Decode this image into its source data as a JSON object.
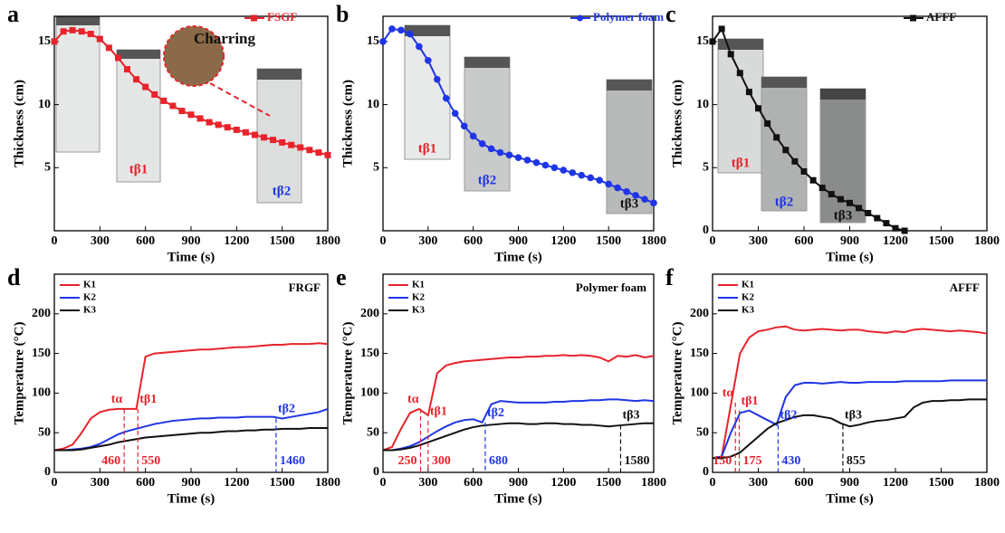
{
  "chart_data": [
    {
      "type": "line",
      "panel": "a",
      "xlabel": "Time (s)",
      "ylabel": "Thickness (cm)",
      "xlim": [
        0,
        1800
      ],
      "ylim": [
        0,
        17
      ],
      "xticks": [
        0,
        300,
        600,
        900,
        1200,
        1500,
        1800
      ],
      "yticks": [
        5,
        10,
        15
      ],
      "legend": "upper right",
      "marker": "square",
      "x": [
        0,
        60,
        120,
        180,
        240,
        300,
        360,
        420,
        480,
        540,
        600,
        660,
        720,
        780,
        840,
        900,
        960,
        1020,
        1080,
        1140,
        1200,
        1260,
        1320,
        1380,
        1440,
        1500,
        1560,
        1620,
        1680,
        1740,
        1800
      ],
      "series": [
        {
          "name": "FSGF",
          "color": "#e8232b",
          "values": [
            15.0,
            15.8,
            15.9,
            15.8,
            15.6,
            15.2,
            14.5,
            13.7,
            12.8,
            12.0,
            11.4,
            10.8,
            10.3,
            9.9,
            9.5,
            9.2,
            8.9,
            8.6,
            8.4,
            8.2,
            8.0,
            7.8,
            7.6,
            7.4,
            7.2,
            7.0,
            6.8,
            6.6,
            6.4,
            6.2,
            6.0
          ]
        }
      ],
      "photo_labels": [
        {
          "text": "tβ1",
          "color": "#e8232b"
        },
        {
          "text": "tβ2",
          "color": "#1f35e6"
        },
        {
          "text": "Charring",
          "color": "#111111"
        }
      ]
    },
    {
      "type": "line",
      "panel": "b",
      "xlabel": "Time (s)",
      "ylabel": "Thickness (cm)",
      "xlim": [
        0,
        1800
      ],
      "ylim": [
        0,
        17
      ],
      "xticks": [
        0,
        300,
        600,
        900,
        1200,
        1500,
        1800
      ],
      "yticks": [
        5,
        10,
        15
      ],
      "legend": "upper right",
      "marker": "circle",
      "x": [
        0,
        60,
        120,
        180,
        240,
        300,
        360,
        420,
        480,
        540,
        600,
        660,
        720,
        780,
        840,
        900,
        960,
        1020,
        1080,
        1140,
        1200,
        1260,
        1320,
        1380,
        1440,
        1500,
        1560,
        1620,
        1680,
        1740,
        1800
      ],
      "series": [
        {
          "name": "Polymer foam",
          "color": "#1f35e6",
          "values": [
            15.0,
            16.0,
            15.9,
            15.6,
            14.6,
            13.5,
            12.0,
            10.5,
            9.3,
            8.3,
            7.5,
            6.9,
            6.5,
            6.2,
            6.0,
            5.8,
            5.6,
            5.4,
            5.2,
            5.0,
            4.8,
            4.6,
            4.4,
            4.2,
            4.0,
            3.7,
            3.4,
            3.1,
            2.8,
            2.5,
            2.2
          ]
        }
      ],
      "photo_labels": [
        {
          "text": "tβ1",
          "color": "#e8232b"
        },
        {
          "text": "tβ2",
          "color": "#1f35e6"
        },
        {
          "text": "tβ3",
          "color": "#111111"
        }
      ]
    },
    {
      "type": "line",
      "panel": "c",
      "xlabel": "Time (s)",
      "ylabel": "Thickness (cm)",
      "xlim": [
        0,
        1800
      ],
      "ylim": [
        0,
        17
      ],
      "xticks": [
        0,
        300,
        600,
        900,
        1200,
        1500,
        1800
      ],
      "yticks": [
        0,
        5,
        10,
        15
      ],
      "legend": "upper right",
      "marker": "square",
      "x": [
        0,
        60,
        120,
        180,
        240,
        300,
        360,
        420,
        480,
        540,
        600,
        660,
        720,
        780,
        840,
        900,
        960,
        1020,
        1080,
        1140,
        1200,
        1260
      ],
      "series": [
        {
          "name": "AFFF",
          "color": "#111111",
          "values": [
            15.0,
            16.0,
            14.0,
            12.5,
            11.0,
            9.7,
            8.5,
            7.4,
            6.4,
            5.5,
            4.7,
            4.0,
            3.4,
            2.9,
            2.5,
            2.2,
            1.8,
            1.4,
            1.0,
            0.6,
            0.2,
            0
          ]
        }
      ],
      "photo_labels": [
        {
          "text": "tβ1",
          "color": "#e8232b"
        },
        {
          "text": "tβ2",
          "color": "#1f35e6"
        },
        {
          "text": "tβ3",
          "color": "#111111"
        }
      ]
    },
    {
      "type": "line",
      "panel": "d",
      "title": "FRGF",
      "xlabel": "Time (s)",
      "ylabel": "Temperature (°C)",
      "xlim": [
        0,
        1800
      ],
      "ylim": [
        0,
        250
      ],
      "xticks": [
        0,
        300,
        600,
        900,
        1200,
        1500,
        1800
      ],
      "yticks": [
        0,
        50,
        100,
        150,
        200
      ],
      "legend": "upper left",
      "x": [
        0,
        60,
        120,
        180,
        240,
        300,
        360,
        420,
        480,
        540,
        600,
        660,
        720,
        780,
        840,
        900,
        960,
        1020,
        1080,
        1140,
        1200,
        1260,
        1320,
        1380,
        1440,
        1500,
        1560,
        1620,
        1680,
        1740,
        1800
      ],
      "series": [
        {
          "name": "K1",
          "color": "#e8232b",
          "values": [
            28,
            30,
            35,
            50,
            68,
            76,
            79,
            80,
            80,
            80,
            146,
            150,
            151,
            152,
            153,
            154,
            155,
            155,
            156,
            157,
            158,
            158,
            159,
            160,
            161,
            161,
            162,
            162,
            162,
            163,
            162
          ]
        },
        {
          "name": "K2",
          "color": "#1f35e6",
          "values": [
            28,
            28,
            29,
            30,
            32,
            36,
            42,
            48,
            52,
            55,
            58,
            61,
            63,
            65,
            66,
            67,
            68,
            68,
            69,
            69,
            69,
            70,
            70,
            70,
            70,
            68,
            70,
            72,
            74,
            76,
            80
          ]
        },
        {
          "name": "K3",
          "color": "#111111",
          "values": [
            28,
            28,
            28,
            29,
            31,
            33,
            35,
            38,
            40,
            42,
            44,
            45,
            46,
            47,
            48,
            49,
            50,
            50,
            51,
            52,
            52,
            53,
            53,
            54,
            54,
            55,
            55,
            55,
            56,
            56,
            56
          ]
        }
      ],
      "annotations": [
        {
          "label": "tα",
          "x": 460,
          "y": 80,
          "color": "#e8232b"
        },
        {
          "label": "tβ1",
          "x": 550,
          "y": 80,
          "color": "#e8232b"
        },
        {
          "label": "tβ2",
          "x": 1460,
          "y": 68,
          "color": "#1f35e6"
        }
      ]
    },
    {
      "type": "line",
      "panel": "e",
      "title": "Polymer foam",
      "xlabel": "Time (s)",
      "ylabel": "Temperature (°C)",
      "xlim": [
        0,
        1800
      ],
      "ylim": [
        0,
        250
      ],
      "xticks": [
        0,
        300,
        600,
        900,
        1200,
        1500,
        1800
      ],
      "yticks": [
        0,
        50,
        100,
        150,
        200
      ],
      "legend": "upper left",
      "x": [
        0,
        60,
        120,
        180,
        240,
        300,
        360,
        420,
        480,
        540,
        600,
        660,
        720,
        780,
        840,
        900,
        960,
        1020,
        1080,
        1140,
        1200,
        1260,
        1320,
        1380,
        1440,
        1500,
        1560,
        1620,
        1680,
        1740,
        1800
      ],
      "series": [
        {
          "name": "K1",
          "color": "#e8232b",
          "values": [
            28,
            32,
            55,
            75,
            80,
            72,
            125,
            135,
            138,
            140,
            141,
            142,
            143,
            144,
            145,
            145,
            146,
            146,
            147,
            147,
            148,
            147,
            148,
            147,
            145,
            140,
            147,
            146,
            148,
            145,
            147
          ]
        },
        {
          "name": "K2",
          "color": "#1f35e6",
          "values": [
            28,
            28,
            30,
            33,
            38,
            45,
            52,
            58,
            63,
            66,
            67,
            63,
            86,
            90,
            89,
            88,
            88,
            88,
            88,
            89,
            89,
            90,
            90,
            91,
            91,
            92,
            92,
            91,
            90,
            91,
            90
          ]
        },
        {
          "name": "K3",
          "color": "#111111",
          "values": [
            28,
            28,
            29,
            31,
            34,
            38,
            42,
            46,
            50,
            54,
            57,
            59,
            60,
            61,
            62,
            62,
            61,
            61,
            62,
            62,
            61,
            61,
            60,
            60,
            59,
            58,
            59,
            60,
            61,
            62,
            62
          ]
        }
      ],
      "annotations": [
        {
          "label": "tα",
          "x": 250,
          "y": 80,
          "color": "#e8232b"
        },
        {
          "label": "tβ1",
          "x": 300,
          "y": 65,
          "color": "#e8232b"
        },
        {
          "label": "tβ2",
          "x": 680,
          "y": 63,
          "color": "#1f35e6"
        },
        {
          "label": "tβ3",
          "x": 1580,
          "y": 60,
          "color": "#111111"
        }
      ]
    },
    {
      "type": "line",
      "panel": "f",
      "title": "AFFF",
      "xlabel": "Time (s)",
      "ylabel": "Temperature (°C)",
      "xlim": [
        0,
        1800
      ],
      "ylim": [
        0,
        250
      ],
      "xticks": [
        0,
        300,
        600,
        900,
        1200,
        1500,
        1800
      ],
      "yticks": [
        0,
        50,
        100,
        150,
        200
      ],
      "legend": "upper left",
      "x": [
        0,
        60,
        120,
        180,
        240,
        300,
        360,
        420,
        480,
        540,
        600,
        660,
        720,
        780,
        840,
        900,
        960,
        1020,
        1080,
        1140,
        1200,
        1260,
        1320,
        1380,
        1440,
        1500,
        1560,
        1620,
        1680,
        1740,
        1800
      ],
      "series": [
        {
          "name": "K1",
          "color": "#e8232b",
          "values": [
            18,
            20,
            85,
            150,
            170,
            178,
            180,
            183,
            184,
            180,
            179,
            180,
            181,
            180,
            179,
            180,
            180,
            178,
            177,
            176,
            178,
            177,
            180,
            181,
            180,
            179,
            178,
            179,
            178,
            177,
            175
          ]
        },
        {
          "name": "K2",
          "color": "#1f35e6",
          "values": [
            18,
            20,
            50,
            75,
            78,
            72,
            66,
            60,
            95,
            110,
            113,
            113,
            112,
            113,
            114,
            113,
            113,
            114,
            114,
            114,
            114,
            115,
            115,
            115,
            115,
            115,
            116,
            116,
            116,
            116,
            116
          ]
        },
        {
          "name": "K3",
          "color": "#111111",
          "values": [
            18,
            18,
            20,
            25,
            35,
            45,
            55,
            62,
            66,
            70,
            72,
            72,
            70,
            68,
            62,
            58,
            60,
            63,
            65,
            66,
            68,
            70,
            82,
            88,
            90,
            90,
            91,
            91,
            92,
            92,
            92
          ]
        }
      ],
      "annotations": [
        {
          "label": "tα",
          "x": 150,
          "y": 88,
          "color": "#e8232b"
        },
        {
          "label": "tβ1",
          "x": 175,
          "y": 78,
          "color": "#e8232b"
        },
        {
          "label": "tβ2",
          "x": 430,
          "y": 60,
          "color": "#1f35e6"
        },
        {
          "label": "tβ3",
          "x": 855,
          "y": 60,
          "color": "#111111"
        }
      ]
    }
  ]
}
